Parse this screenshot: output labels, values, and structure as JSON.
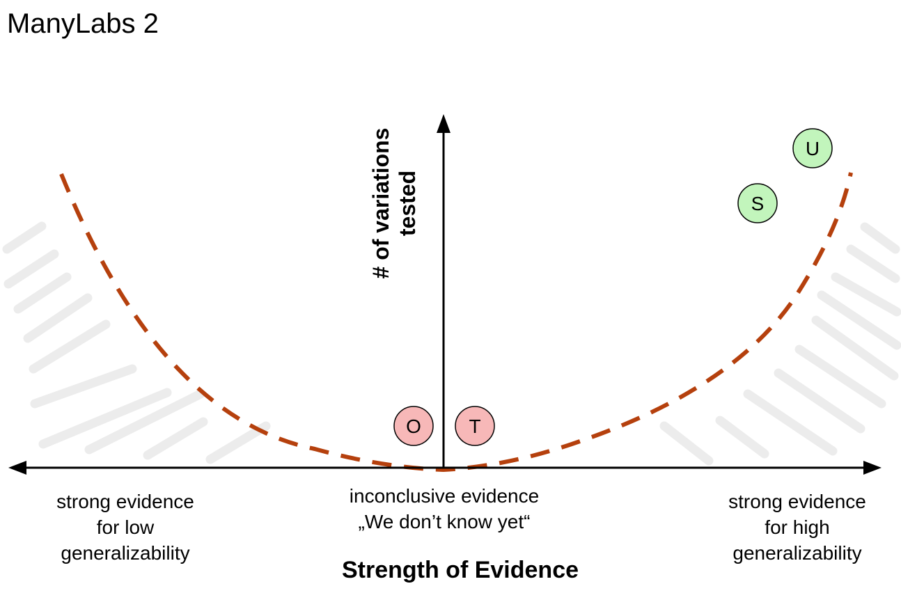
{
  "title": "ManyLabs 2",
  "x_axis_title": "Strength of Evidence",
  "y_axis_title": "# of variations\ntested",
  "regions": {
    "left": "strong evidence\nfor low\ngeneralizability",
    "center": "inconclusive evidence\n„We don’t know yet“",
    "right": "strong evidence\nfor high\ngeneralizability"
  },
  "markers": [
    {
      "label": "O",
      "group": "inconclusive",
      "fill": "#f7b8b8"
    },
    {
      "label": "T",
      "group": "inconclusive",
      "fill": "#f7b8b8"
    },
    {
      "label": "S",
      "group": "high generalizability",
      "fill": "#c2f5bc"
    },
    {
      "label": "U",
      "group": "high generalizability",
      "fill": "#c2f5bc"
    }
  ],
  "colors": {
    "boundary_curve": "#b5400d",
    "hatching": "#ececec",
    "axis": "#000000"
  }
}
